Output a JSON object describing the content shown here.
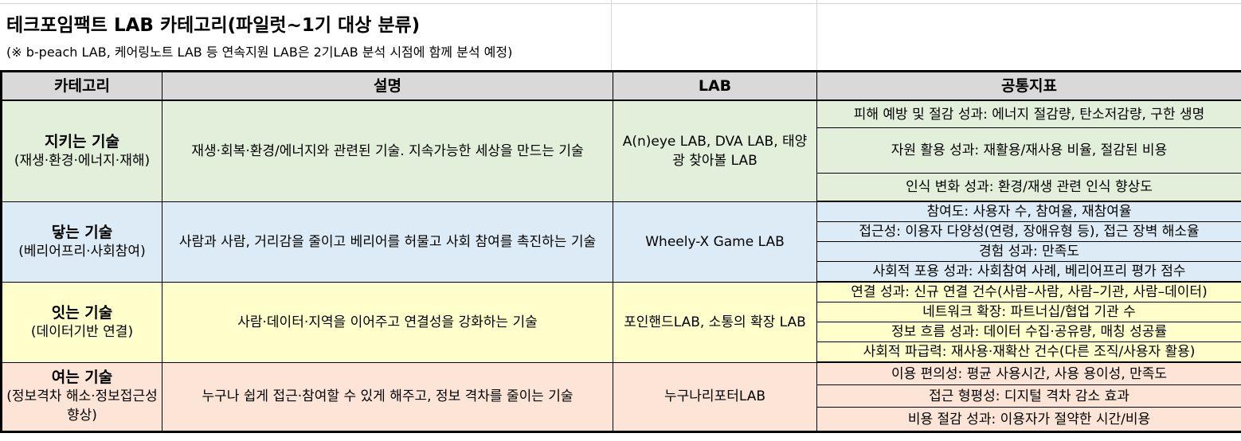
{
  "header": {
    "title": "테크포임팩트 LAB 카테고리(파일럿~1기 대상 분류)",
    "note": "(※ b-peach LAB, 케어링노트 LAB 등 연속지원 LAB은 2기LAB 분석 시점에 함께 분석 예정)"
  },
  "columns": {
    "category": "카테고리",
    "description": "설명",
    "lab": "LAB",
    "metrics": "공통지표"
  },
  "rows": [
    {
      "name": "지키는 기술",
      "sub": "(재생·환경·에너지·재해)",
      "description": "재생·회복·환경/에너지와 관련된 기술. 지속가능한 세상을 만드는 기술",
      "labs": "A(n)eye LAB, DVA LAB, 태양광 찾아볼 LAB",
      "metrics": [
        "피해 예방 및 절감 성과: 에너지 절감량, 탄소저감량, 구한 생명",
        "자원 활용 성과: 재활용/재사용 비율, 절감된 비용",
        "인식 변화 성과: 환경/재생 관련 인식 향상도"
      ],
      "color": "#e2efda"
    },
    {
      "name": "닿는 기술",
      "sub": "(베리어프리·사회참여)",
      "description": "사람과 사람, 거리감을 줄이고 베리어를 허물고 사회 참여를 촉진하는 기술",
      "labs": "Wheely-X Game LAB",
      "metrics": [
        "참여도: 사용자 수, 참여율, 재참여율",
        "접근성: 이용자 다양성(연령, 장애유형 등), 접근 장벽 해소율",
        "경험 성과: 만족도",
        "사회적 포용 성과: 사회참여 사례, 베리어프리 평가 점수"
      ],
      "color": "#ddebf7"
    },
    {
      "name": "잇는 기술",
      "sub": "(데이터기반 연결)",
      "description": "사람·데이터·지역을 이어주고 연결성을 강화하는 기술",
      "labs": "포인핸드LAB, 소통의 확장 LAB",
      "metrics": [
        "연결 성과: 신규 연결 건수(사람–사람, 사람–기관, 사람–데이터)",
        "네트워크 확장: 파트너십/협업 기관 수",
        "정보 흐름 성과: 데이터 수집·공유량, 매칭 성공률",
        "사회적 파급력: 재사용·재확산 건수(다른 조직/사용자 활용)"
      ],
      "color": "#ffffcc"
    },
    {
      "name": "여는 기술",
      "sub": "(정보격차 해소·정보접근성 향상)",
      "description": "누구나 쉽게 접근·참여할 수 있게 해주고, 정보 격차를 줄이는 기술",
      "labs": "누구나리포터LAB",
      "metrics": [
        "이용 편의성: 평균 사용시간, 사용 용이성, 만족도",
        "접근 형평성: 디지털 격차 감소 효과",
        "비용 절감 성과: 이용자가 절약한 시간/비용"
      ],
      "color": "#fce4d6"
    }
  ]
}
